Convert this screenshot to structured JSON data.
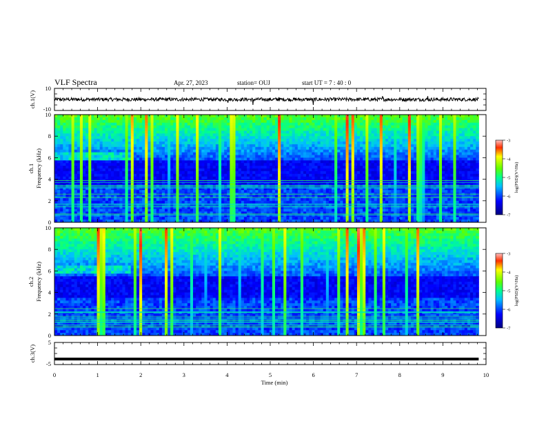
{
  "header": {
    "title": "VLF Spectra",
    "date": "Apr. 27, 2023",
    "station": "station= OUJ",
    "start_ut": "start UT =  7 : 40 : 0"
  },
  "chart_data": {
    "type": "heatmap",
    "x": {
      "label": "Time (min)",
      "range": [
        0,
        10
      ],
      "ticks": [
        "0",
        "1",
        "2",
        "3",
        "4",
        "5",
        "6",
        "7",
        "8",
        "9",
        "10"
      ],
      "data_end": 9.83
    },
    "panels": [
      {
        "id": "ch1-waveform",
        "type": "line",
        "ylabel": "ch.1(V)",
        "ylim": [
          -10,
          10
        ],
        "yticks": [
          "10",
          "-10"
        ],
        "baseline": 0,
        "spikes": [
          {
            "t": 4.02,
            "v": -3
          },
          {
            "t": 4.6,
            "v": -5
          },
          {
            "t": 5.2,
            "v": 2
          },
          {
            "t": 6.0,
            "v": -5
          },
          {
            "t": 7.6,
            "v": 3
          },
          {
            "t": 8.65,
            "v": 3
          }
        ]
      },
      {
        "id": "ch1-spectrogram",
        "type": "heatmap",
        "ylabel_top": "ch.1",
        "ylabel": "Frequency (kHz)",
        "ylim": [
          0,
          10
        ],
        "yticks": [
          "0",
          "2",
          "4",
          "6",
          "8",
          "10"
        ],
        "colorbar": {
          "label": "log(PSD)(V²/Hz)",
          "range": [
            -7,
            -3
          ],
          "ticks": [
            "-3",
            "-4",
            "-5",
            "-6",
            "-7"
          ]
        },
        "background_upper_kHz": 5.8,
        "hiss_band_kHz": [
          5.8,
          6.5
        ],
        "hiss_band_end_min": 1.75
      },
      {
        "id": "ch2-spectrogram",
        "type": "heatmap",
        "ylabel_top": "ch.2",
        "ylabel": "Frequency (kHz)",
        "ylim": [
          0,
          10
        ],
        "yticks": [
          "0",
          "2",
          "4",
          "6",
          "8",
          "10"
        ],
        "colorbar": {
          "label": "log(PSD)(V²/Hz)",
          "range": [
            -7,
            -3
          ],
          "ticks": [
            "-3",
            "-4",
            "-5",
            "-6",
            "-7"
          ]
        },
        "background_upper_kHz": 5.5,
        "hiss_band_kHz": [
          5.7,
          6.6
        ],
        "hiss_band_end_min": 1.75
      },
      {
        "id": "ch3-waveform",
        "type": "line",
        "ylabel": "ch.3(V)",
        "ylim": [
          -5,
          5
        ],
        "yticks": [
          "5",
          "-5"
        ],
        "level": -2.5
      }
    ]
  },
  "colors": {
    "background": "#ffffff",
    "axis": "#000000",
    "waveform": "#000000"
  }
}
